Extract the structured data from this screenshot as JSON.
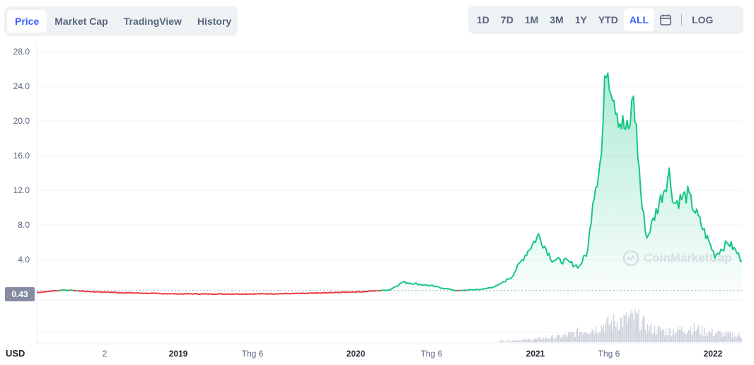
{
  "tabs": [
    "Price",
    "Market Cap",
    "TradingView",
    "History"
  ],
  "active_tab": "Price",
  "ranges": [
    "1D",
    "7D",
    "1M",
    "3M",
    "1Y",
    "YTD",
    "ALL"
  ],
  "active_range": "ALL",
  "log_label": "LOG",
  "currency_label": "USD",
  "current_price_label": "0.43",
  "watermark_text": "CoinMarketCap",
  "colors": {
    "up": "#16c784",
    "down": "#ea3943",
    "accent": "#3861fb"
  },
  "chart_data": {
    "type": "area",
    "title": "",
    "xlabel": "",
    "ylabel": "",
    "ylim": [
      0,
      28
    ],
    "y_ticks": [
      "28.0",
      "24.0",
      "20.0",
      "16.0",
      "12.0",
      "8.0",
      "4.0"
    ],
    "x_ticks": [
      {
        "label": "2",
        "bold": false
      },
      {
        "label": "2019",
        "bold": true
      },
      {
        "label": "Thg 6",
        "bold": false
      },
      {
        "label": "2020",
        "bold": true
      },
      {
        "label": "Thg 6",
        "bold": false
      },
      {
        "label": "2021",
        "bold": true
      },
      {
        "label": "Thg 6",
        "bold": false
      },
      {
        "label": "2022",
        "bold": true
      }
    ],
    "baseline_price": 0.43,
    "series": [
      {
        "x": [
          "2017-10",
          "2017-11",
          "2017-12",
          "2018-02",
          "2018-05",
          "2018-08",
          "2018-11",
          "2019-01",
          "2019-03",
          "2019-06",
          "2019-08",
          "2019-10",
          "2019-12",
          "2020-01",
          "2020-02",
          "2020-03",
          "2020-05",
          "2020-07",
          "2020-08",
          "2020-09",
          "2020-10",
          "2020-11",
          "2020-12",
          "2021-01",
          "2021-02",
          "2021-02-20",
          "2021-03",
          "2021-03-20",
          "2021-04",
          "2021-05",
          "2021-05-20",
          "2021-06",
          "2021-06-20",
          "2021-07",
          "2021-08",
          "2021-08-20",
          "2021-09",
          "2021-10",
          "2021-11",
          "2021-12",
          "2022-01",
          "2022-01-20",
          "2022-02"
        ],
        "values": [
          0.2,
          0.35,
          0.5,
          0.3,
          0.15,
          0.05,
          0.03,
          0.03,
          0.05,
          0.1,
          0.2,
          0.3,
          0.5,
          1.4,
          1.2,
          1.0,
          0.4,
          0.6,
          1.0,
          2.0,
          4.5,
          6.8,
          4.0,
          3.8,
          3.2,
          5.0,
          11.0,
          16.0,
          27.0,
          20.0,
          18.5,
          23.0,
          10.0,
          6.5,
          11.0,
          14.0,
          10.5,
          11.5,
          8.0,
          4.5,
          6.0,
          4.8,
          3.8
        ]
      }
    ],
    "volume": {
      "note_x_start": "2020-08",
      "values": [
        0.05,
        0.08,
        0.1,
        0.12,
        0.15,
        0.2,
        0.25,
        0.35,
        0.5,
        0.55,
        0.7,
        0.85,
        0.9,
        1.0,
        0.6,
        0.5,
        0.45,
        0.5,
        0.6,
        0.5,
        0.4,
        0.35,
        0.3,
        0.25
      ]
    }
  }
}
